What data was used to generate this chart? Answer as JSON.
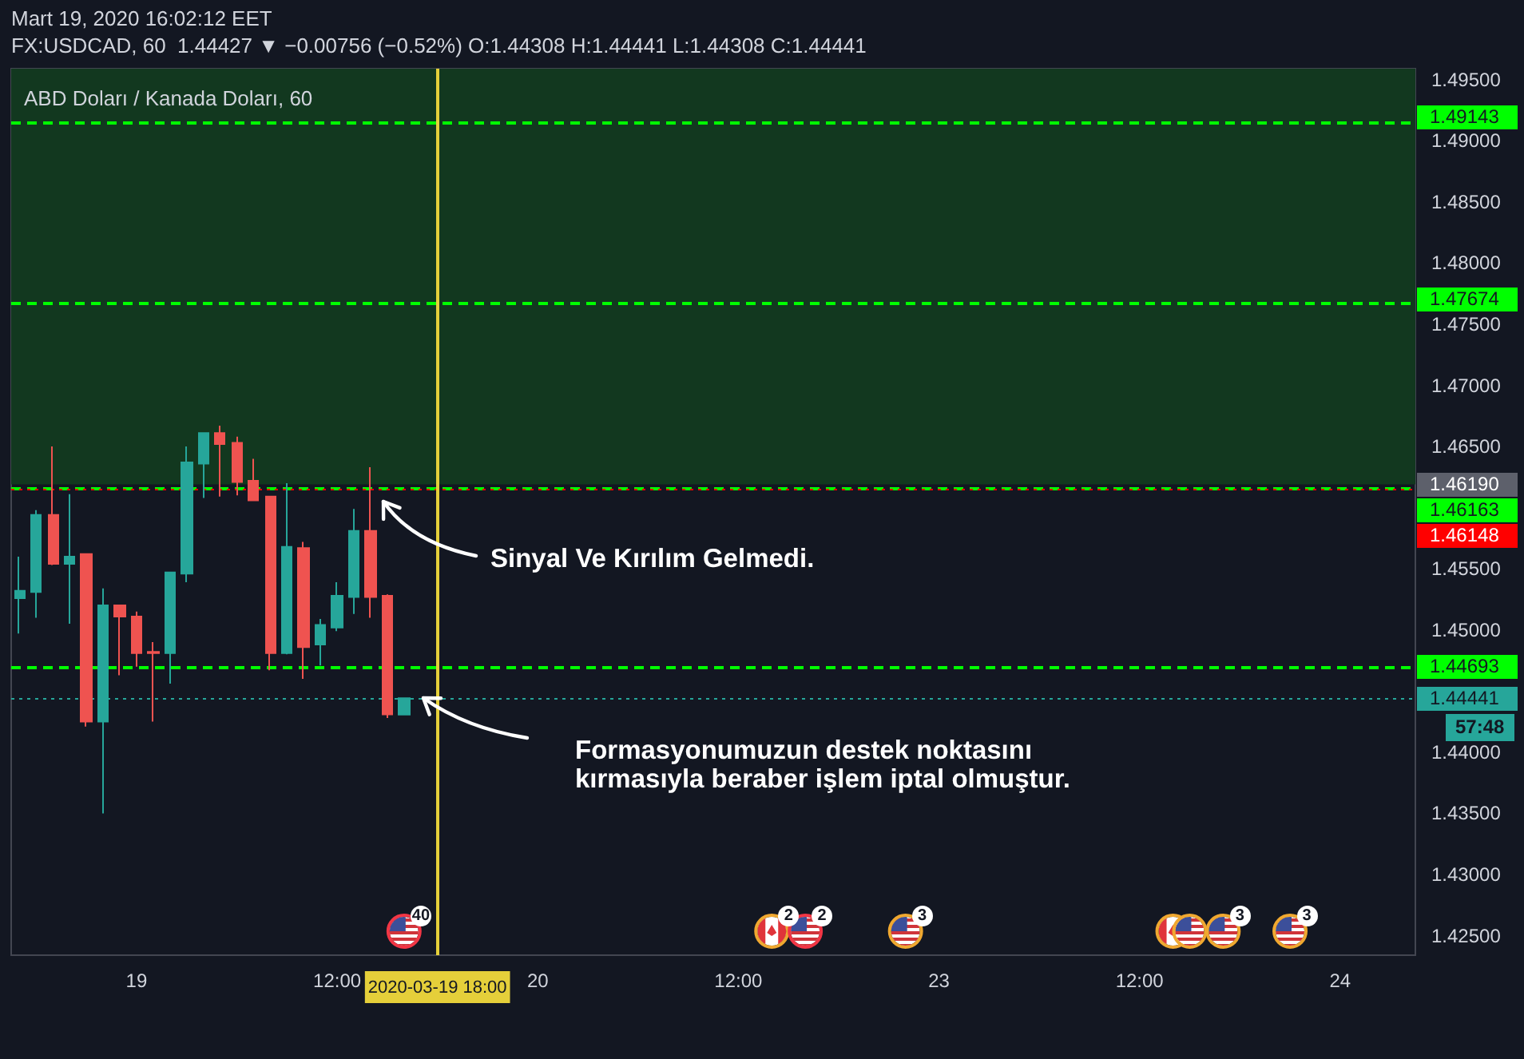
{
  "chart_data": {
    "type": "candlestick",
    "title": "ABD Doları / Kanada Doları, 60",
    "subtitle": "FX:USDCAD, 60  1.44427 ▼ −0.00756 (−0.52%) O:1.44308 H:1.44441 L:1.44308 C:1.44441",
    "categories": [
      null,
      null,
      null,
      null,
      null,
      null,
      null,
      "19",
      null,
      null,
      null,
      null,
      null,
      null,
      null,
      null,
      null,
      null,
      null,
      "12:00",
      null,
      null,
      null,
      null,
      null,
      "2020-03-19 18:00",
      null,
      null,
      null,
      null,
      null,
      "20",
      null,
      null,
      null,
      null,
      null,
      null,
      null,
      null,
      null,
      null,
      null,
      "12:00",
      null,
      null,
      null,
      null,
      null,
      null,
      null,
      null,
      null,
      null,
      null,
      "23",
      null,
      null,
      null,
      null,
      null,
      null,
      null,
      null,
      null,
      null,
      null,
      "12:00",
      null,
      null,
      null,
      null,
      null,
      null,
      null,
      null,
      null,
      null,
      null,
      "24",
      null,
      null,
      null,
      null
    ],
    "ohlc": [
      [
        1.4526,
        1.456,
        1.4497,
        1.4532
      ],
      [
        1.4531,
        1.4598,
        1.451,
        1.4594
      ],
      [
        1.4594,
        1.465,
        1.4553,
        1.4554
      ],
      [
        1.4554,
        1.4611,
        1.4505,
        1.456
      ],
      [
        1.4562,
        1.4562,
        1.4421,
        1.4425
      ],
      [
        1.4425,
        1.4534,
        1.435,
        1.452
      ],
      [
        1.452,
        1.452,
        1.4463,
        1.4511
      ],
      [
        1.4511,
        1.4515,
        1.447,
        1.4481
      ],
      [
        1.4482,
        1.449,
        1.4425,
        1.4481
      ],
      [
        1.4481,
        1.4547,
        1.4456,
        1.4547
      ],
      [
        1.4546,
        1.465,
        1.4539,
        1.4637
      ],
      [
        1.4636,
        1.4661,
        1.4608,
        1.4661
      ],
      [
        1.4661,
        1.4667,
        1.4609,
        1.4652
      ],
      [
        1.4653,
        1.4658,
        1.461,
        1.4621
      ],
      [
        1.4622,
        1.464,
        1.4606,
        1.4606
      ],
      [
        1.4609,
        1.4609,
        1.4467,
        1.4481
      ],
      [
        1.4481,
        1.462,
        1.448,
        1.4568
      ],
      [
        1.4567,
        1.4572,
        1.446,
        1.4486
      ],
      [
        1.4488,
        1.4509,
        1.4471,
        1.4504
      ],
      [
        1.4502,
        1.4539,
        1.4499,
        1.4528
      ],
      [
        1.4527,
        1.4599,
        1.4513,
        1.4581
      ],
      [
        1.4581,
        1.4633,
        1.451,
        1.4527
      ],
      [
        1.4528,
        1.4529,
        1.4428,
        1.4431
      ],
      [
        1.44308,
        1.44441,
        1.44308,
        1.44441
      ],
      null,
      null,
      null,
      null,
      null,
      null,
      null,
      null,
      null,
      null,
      null,
      null,
      null,
      null,
      null,
      null,
      null,
      null,
      null,
      null,
      null,
      null,
      null,
      null,
      null,
      null,
      null,
      null,
      null,
      null,
      null,
      null,
      null,
      null,
      null,
      null,
      null,
      null,
      null,
      null,
      null,
      null,
      null,
      null,
      null,
      null,
      null,
      null,
      null,
      null,
      null,
      null,
      null,
      null,
      null,
      null,
      null,
      null,
      null,
      null
    ],
    "colors": [
      "#26a69a",
      "#26a69a",
      "#ef5350",
      "#26a69a",
      "#ef5350",
      "#26a69a",
      "#ef5350",
      "#ef5350",
      "#ef5350",
      "#26a69a",
      "#26a69a",
      "#26a69a",
      "#ef5350",
      "#ef5350",
      "#ef5350",
      "#ef5350",
      "#26a69a",
      "#ef5350",
      "#26a69a",
      "#26a69a",
      "#26a69a",
      "#ef5350",
      "#ef5350",
      "#26a69a",
      null,
      null,
      null,
      null,
      null,
      null,
      null,
      null,
      null,
      null,
      null,
      null,
      null,
      null,
      null,
      null,
      null,
      null,
      null,
      null,
      null,
      null,
      null,
      null,
      null,
      null,
      null,
      null,
      null,
      null,
      null,
      null,
      null,
      null,
      null,
      null,
      null,
      null,
      null,
      null,
      null,
      null,
      null,
      null,
      null,
      null,
      null,
      null,
      null,
      null,
      null,
      null,
      null,
      null,
      null,
      null,
      null,
      null,
      null,
      null
    ],
    "ylim": [
      1.4234,
      1.4959
    ],
    "yticks": [
      {
        "value": 1.425,
        "label": "1.42500"
      },
      {
        "value": 1.43,
        "label": "1.43000"
      },
      {
        "value": 1.435,
        "label": "1.43500"
      },
      {
        "value": 1.44,
        "label": "1.44000"
      },
      {
        "value": 1.45,
        "label": "1.45000"
      },
      {
        "value": 1.455,
        "label": "1.45500"
      },
      {
        "value": 1.465,
        "label": "1.46500"
      },
      {
        "value": 1.47,
        "label": "1.47000"
      },
      {
        "value": 1.475,
        "label": "1.47500"
      },
      {
        "value": 1.48,
        "label": "1.48000"
      },
      {
        "value": 1.485,
        "label": "1.48500"
      },
      {
        "value": 1.49,
        "label": "1.49000"
      },
      {
        "value": 1.495,
        "label": "1.49500"
      }
    ],
    "grid": false,
    "bands": [
      {
        "axis": "y",
        "from": 1.4619,
        "to": 1.4959,
        "label": "1.46190",
        "color": "#12381f"
      }
    ],
    "ref_lines": [
      {
        "axis": "y",
        "value": 1.49143,
        "label": "1.49143",
        "color": "#00ff00",
        "line_style": "dashed"
      },
      {
        "axis": "y",
        "value": 1.47674,
        "label": "1.47674",
        "color": "#00ff00",
        "line_style": "dashed"
      },
      {
        "axis": "y",
        "value": 1.46163,
        "label": "1.46163",
        "color": "#00ff00",
        "line_style": "dashed"
      },
      {
        "axis": "y",
        "value": 1.44693,
        "label": "1.44693",
        "color": "#00ff00",
        "line_style": "dashed"
      },
      {
        "axis": "y",
        "value": 1.46148,
        "label": "1.46148",
        "color": "#ff0000",
        "line_style": "dotted"
      },
      {
        "axis": "y",
        "value": 1.44441,
        "label": "1.44441",
        "color": "#26a69a",
        "line_style": "dotted"
      },
      {
        "axis": "x",
        "value": "2020-03-19 18:00",
        "color": "#e5cf3a",
        "line_style": "solid"
      }
    ],
    "annotations": [
      "Mart 19, 2020 16:02:12 EET",
      "57:48",
      "Sinyal Ve Kırılım Gelmedi.",
      "Formasyonumuzun destek noktasını kırmasıyla beraber işlem iptal olmuştur.",
      "40",
      "2",
      "2",
      "3",
      "3",
      "3"
    ]
  }
}
